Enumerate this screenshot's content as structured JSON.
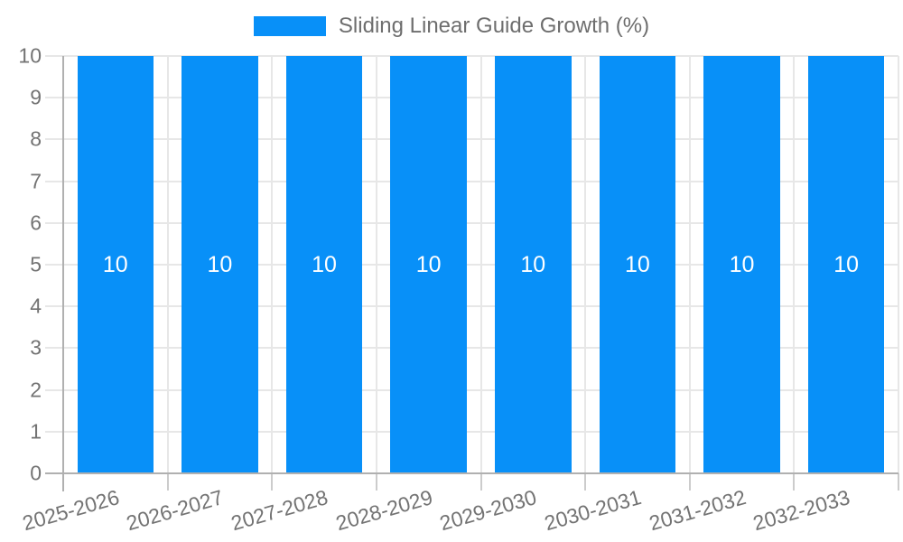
{
  "chart_data": {
    "type": "bar",
    "title": "Sliding Linear Guide Growth (%)",
    "legend_position": "top",
    "categories": [
      "2025-2026",
      "2026-2027",
      "2027-2028",
      "2028-2029",
      "2029-2030",
      "2030-2031",
      "2031-2032",
      "2032-2033"
    ],
    "series": [
      {
        "name": "Sliding Linear Guide Growth (%)",
        "values": [
          10,
          10,
          10,
          10,
          10,
          10,
          10,
          10
        ]
      }
    ],
    "bar_value_labels": [
      "10",
      "10",
      "10",
      "10",
      "10",
      "10",
      "10",
      "10"
    ],
    "xlabel": "",
    "ylabel": "",
    "ylim": [
      0,
      10
    ],
    "yticks": [
      0,
      1,
      2,
      3,
      4,
      5,
      6,
      7,
      8,
      9,
      10
    ],
    "grid": true,
    "value_labels_shown": true
  },
  "colors": {
    "bar": "#0890F8",
    "grid": "#e7e7e7",
    "axis": "#b0b0b0",
    "minor_tick": "#cccccc",
    "tick_text": "#737373",
    "legend_text": "#6e6e6e",
    "bar_value_text": "#ffffff",
    "background": "#ffffff"
  }
}
